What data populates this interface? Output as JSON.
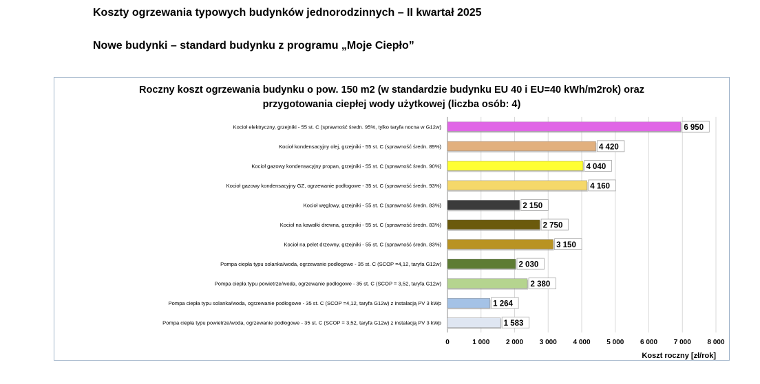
{
  "page": {
    "heading1": "Koszty ogrzewania typowych budynków jednorodzinnych – II kwartał 2025",
    "heading2": "Nowe budynki – standard budynku z programu „Moje Ciepło”"
  },
  "chart_data": {
    "type": "bar",
    "orientation": "horizontal",
    "title_line1": "Roczny koszt ogrzewania budynku o pow. 150 m2 (w standardzie budynku EU 40 i EU=40 kWh/m2rok) oraz",
    "title_line2": "przygotowania ciepłej wody użytkowej (liczba osób: 4)",
    "xlabel": "Koszt roczny [zł/rok]",
    "xlim": [
      0,
      8000
    ],
    "xticks": [
      0,
      1000,
      2000,
      3000,
      4000,
      5000,
      6000,
      7000,
      8000
    ],
    "xtick_labels": [
      "0",
      "1 000",
      "2 000",
      "3 000",
      "4 000",
      "5 000",
      "6 000",
      "7 000",
      "8 000"
    ],
    "grid": true,
    "categories": [
      "Kocioł  elektryczny,  grzejniki - 55 st. C  (sprawność średn. 95%, tylko taryfa nocna w G12w)",
      "Kocioł  kondensacyjny olej,  grzejniki - 55 st. C (sprawność średn. 89%)",
      "Kocioł gazowy kondensacyjny propan, grzejniki - 55 st. C (sprawność średn. 90%)",
      "Kocioł gazowy kondensacyjny GZ, ogrzewanie podłogowe - 35 st. C (sprawność średn. 93%)",
      "Kocioł węglowy,  grzejniki - 55 st. C (sprawność średn. 83%)",
      "Kocioł na kawałki drewna, grzejniki - 55 st. C (sprawność średn. 83%)",
      "Kocioł na pelet drzewny, grzejniki - 55 st. C (sprawność średn. 83%)",
      "Pompa ciepła typu solanka/woda, ogrzewanie podłogowe - 35 st. C (SCOP =4,12, taryfa G12w)",
      "Pompa ciepła typu powietrze/woda, ogrzewanie podłogowe - 35 st. C (SCOP = 3,52, taryfa G12w)",
      "Pompa ciepła typu solanka/woda, ogrzewanie podłogowe - 35 st. C (SCOP =4,12, taryfa G12w) z instalacją PV 3 kWp",
      "Pompa ciepła typu powietrze/woda, ogrzewanie podłogowe - 35 st. C (SCOP = 3,52, taryfa G12w) z instalacją PV 3 kWp"
    ],
    "values": [
      6950,
      4420,
      4040,
      4160,
      2150,
      2750,
      3150,
      2030,
      2380,
      1264,
      1583
    ],
    "value_labels": [
      "6 950",
      "4 420",
      "4 040",
      "4 160",
      "2 150",
      "2 750",
      "3 150",
      "2 030",
      "2 380",
      "1 264",
      "1 583"
    ],
    "colors": [
      "#e066e6",
      "#e2b07e",
      "#ffff33",
      "#f5d86a",
      "#3b3b3b",
      "#6b5a0c",
      "#b99322",
      "#5e7c34",
      "#b5d48f",
      "#a4c2e6",
      "#dfe6f2"
    ]
  }
}
